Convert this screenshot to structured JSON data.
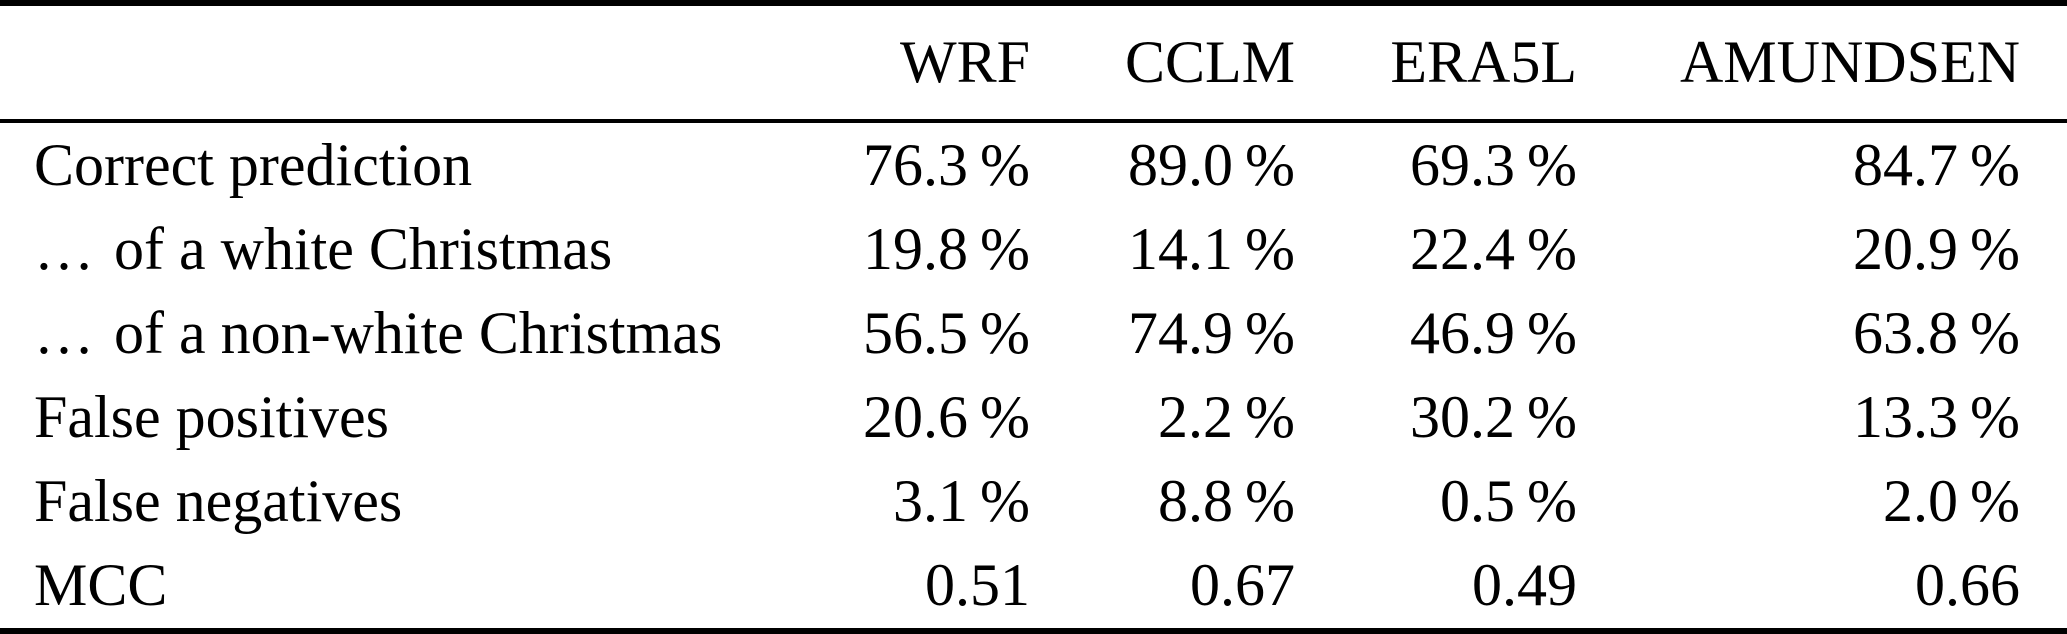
{
  "table": {
    "columns": [
      "",
      "WRF",
      "CCLM",
      "ERA5L",
      "AMUNDSEN"
    ],
    "rows": [
      {
        "prefix": "",
        "label": "Correct prediction",
        "values": [
          "76.3 %",
          "89.0 %",
          "69.3 %",
          "84.7 %"
        ]
      },
      {
        "prefix": "…",
        "label": "of a white Christmas",
        "values": [
          "19.8 %",
          "14.1 %",
          "22.4 %",
          "20.9 %"
        ]
      },
      {
        "prefix": "…",
        "label": "of a non-white Christmas",
        "values": [
          "56.5 %",
          "74.9 %",
          "46.9 %",
          "63.8 %"
        ]
      },
      {
        "prefix": "",
        "label": "False positives",
        "values": [
          "20.6 %",
          "2.2 %",
          "30.2 %",
          "13.3 %"
        ]
      },
      {
        "prefix": "",
        "label": "False negatives",
        "values": [
          "3.1 %",
          "8.8 %",
          "0.5 %",
          "2.0 %"
        ]
      },
      {
        "prefix": "",
        "label": "MCC",
        "values": [
          "0.51",
          "0.67",
          "0.49",
          "0.66"
        ]
      }
    ]
  },
  "chart_data": {
    "type": "table",
    "title": "",
    "columns": [
      "WRF",
      "CCLM",
      "ERA5L",
      "AMUNDSEN"
    ],
    "row_labels": [
      "Correct prediction",
      "… of a white Christmas",
      "… of a non-white Christmas",
      "False positives",
      "False negatives",
      "MCC"
    ],
    "series": [
      {
        "name": "WRF",
        "correct_prediction_pct": 76.3,
        "white_christmas_pct": 19.8,
        "non_white_christmas_pct": 56.5,
        "false_positives_pct": 20.6,
        "false_negatives_pct": 3.1,
        "mcc": 0.51
      },
      {
        "name": "CCLM",
        "correct_prediction_pct": 89.0,
        "white_christmas_pct": 14.1,
        "non_white_christmas_pct": 74.9,
        "false_positives_pct": 2.2,
        "false_negatives_pct": 8.8,
        "mcc": 0.67
      },
      {
        "name": "ERA5L",
        "correct_prediction_pct": 69.3,
        "white_christmas_pct": 22.4,
        "non_white_christmas_pct": 46.9,
        "false_positives_pct": 30.2,
        "false_negatives_pct": 0.5,
        "mcc": 0.49
      },
      {
        "name": "AMUNDSEN",
        "correct_prediction_pct": 84.7,
        "white_christmas_pct": 20.9,
        "non_white_christmas_pct": 63.8,
        "false_positives_pct": 13.3,
        "false_negatives_pct": 2.0,
        "mcc": 0.66
      }
    ]
  }
}
